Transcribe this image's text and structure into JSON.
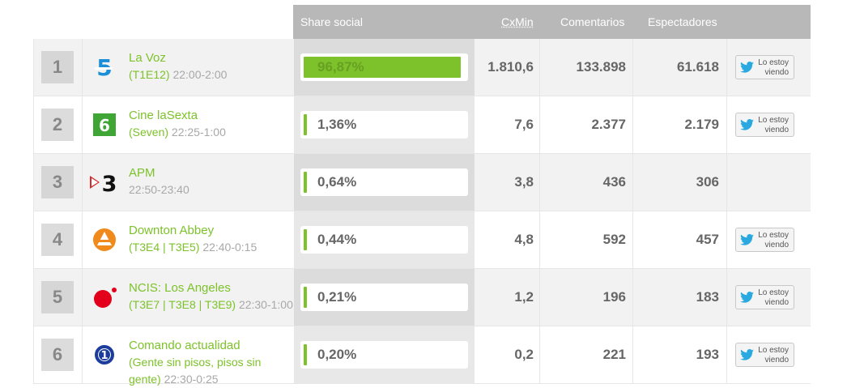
{
  "header": {
    "share": "Share social",
    "cxmin": "CxMin",
    "comentarios": "Comentarios",
    "espectadores": "Espectadores"
  },
  "rows": [
    {
      "rank": "1",
      "name": "La Voz",
      "season": "(T1E12)",
      "time": "22:00-2:00",
      "share": "96,87%",
      "share_value": 96.87,
      "cxmin": "1.810,6",
      "comentarios": "133.898",
      "espectadores": "61.618",
      "button": {
        "line1": "Lo estoy",
        "line2": "viendo"
      },
      "channel_icon": "telecinco-5-icon"
    },
    {
      "rank": "2",
      "name": "Cine laSexta",
      "season": "(Seven)",
      "time": "22:25-1:00",
      "share": "1,36%",
      "share_value": 1.36,
      "cxmin": "7,6",
      "comentarios": "2.377",
      "espectadores": "2.179",
      "button": {
        "line1": "Lo estoy",
        "line2": "viendo"
      },
      "channel_icon": "lasexta-6-icon"
    },
    {
      "rank": "3",
      "name": "APM",
      "season": "",
      "time": "22:50-23:40",
      "share": "0,64%",
      "share_value": 0.64,
      "cxmin": "3,8",
      "comentarios": "436",
      "espectadores": "306",
      "button": null,
      "channel_icon": "tv3-icon"
    },
    {
      "rank": "4",
      "name": "Downton Abbey",
      "season": "(T3E4 | T3E5)",
      "time": "22:40-0:15",
      "share": "0,44%",
      "share_value": 0.44,
      "cxmin": "4,8",
      "comentarios": "592",
      "espectadores": "457",
      "button": {
        "line1": "Lo estoy",
        "line2": "viendo"
      },
      "channel_icon": "antena3-icon"
    },
    {
      "rank": "5",
      "name": "NCIS: Los Angeles",
      "season": "(T3E7 | T3E8 | T3E9)",
      "time": "22:30-1:00",
      "share": "0,21%",
      "share_value": 0.21,
      "cxmin": "1,2",
      "comentarios": "196",
      "espectadores": "183",
      "button": {
        "line1": "Lo estoy",
        "line2": "viendo"
      },
      "channel_icon": "cuatro-icon"
    },
    {
      "rank": "6",
      "name": "Comando actualidad",
      "season": "(Gente sin pisos, pisos sin gente)",
      "time": "22:30-0:25",
      "share": "0,20%",
      "share_value": 0.2,
      "cxmin": "0,2",
      "comentarios": "221",
      "espectadores": "193",
      "button": {
        "line1": "Lo estoy",
        "line2": "viendo"
      },
      "channel_icon": "la1-icon"
    }
  ],
  "colors": {
    "accent": "#7dc22a",
    "header_bg": "#b8b8b8",
    "twitter": "#2aa9e0"
  }
}
